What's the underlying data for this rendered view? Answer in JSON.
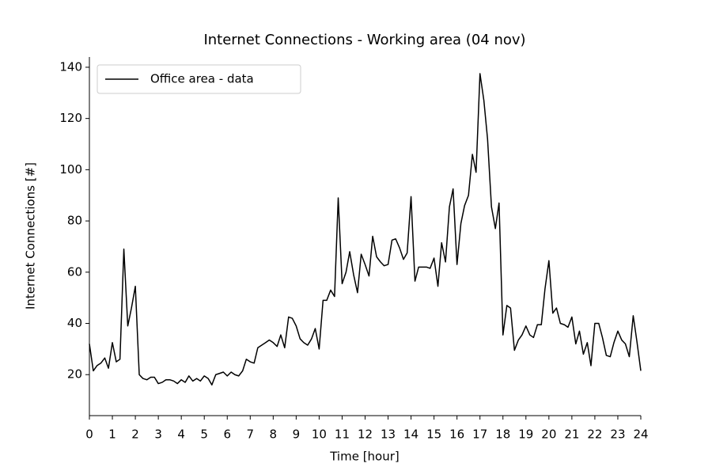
{
  "chart_data": {
    "type": "line",
    "title": "Internet Connections - Working area (04 nov)",
    "x_label": "Time [hour]",
    "y_label": "Internet Connections [#]",
    "legend": "upper left",
    "xlim": [
      0,
      24
    ],
    "ylim": [
      4,
      144
    ],
    "xticks": [
      0,
      1,
      2,
      3,
      4,
      5,
      6,
      7,
      8,
      9,
      10,
      11,
      12,
      13,
      14,
      15,
      16,
      17,
      18,
      19,
      20,
      21,
      22,
      23,
      24
    ],
    "yticks": [
      20,
      40,
      60,
      80,
      100,
      120,
      140
    ],
    "x": [
      0,
      0.17,
      0.33,
      0.5,
      0.67,
      0.83,
      1.0,
      1.17,
      1.33,
      1.5,
      1.67,
      1.83,
      2.0,
      2.17,
      2.33,
      2.5,
      2.67,
      2.83,
      3.0,
      3.17,
      3.33,
      3.5,
      3.67,
      3.83,
      4.0,
      4.17,
      4.33,
      4.5,
      4.67,
      4.83,
      5.0,
      5.17,
      5.33,
      5.5,
      5.67,
      5.83,
      6.0,
      6.17,
      6.33,
      6.5,
      6.67,
      6.83,
      7.0,
      7.17,
      7.33,
      7.5,
      7.67,
      7.83,
      8.0,
      8.17,
      8.33,
      8.5,
      8.67,
      8.83,
      9.0,
      9.17,
      9.33,
      9.5,
      9.67,
      9.83,
      10.0,
      10.17,
      10.33,
      10.5,
      10.67,
      10.83,
      11.0,
      11.17,
      11.33,
      11.5,
      11.67,
      11.83,
      12.0,
      12.17,
      12.33,
      12.5,
      12.67,
      12.83,
      13.0,
      13.17,
      13.33,
      13.5,
      13.67,
      13.83,
      14.0,
      14.17,
      14.33,
      14.5,
      14.67,
      14.83,
      15.0,
      15.17,
      15.33,
      15.5,
      15.67,
      15.83,
      16.0,
      16.17,
      16.33,
      16.5,
      16.67,
      16.83,
      17.0,
      17.17,
      17.33,
      17.5,
      17.67,
      17.83,
      18.0,
      18.17,
      18.33,
      18.5,
      18.67,
      18.83,
      19.0,
      19.17,
      19.33,
      19.5,
      19.67,
      19.83,
      20.0,
      20.17,
      20.33,
      20.5,
      20.67,
      20.83,
      21.0,
      21.17,
      21.33,
      21.5,
      21.67,
      21.83,
      22.0,
      22.17,
      22.33,
      22.5,
      22.67,
      22.83,
      23.0,
      23.17,
      23.33,
      23.5,
      23.67,
      23.83,
      24.0
    ],
    "series": [
      {
        "name": "Office area - data",
        "color": "#000000",
        "values": [
          32,
          21.5,
          23.5,
          24.5,
          26.5,
          22.5,
          32.5,
          25,
          26,
          69,
          39,
          46,
          54.5,
          20,
          18.5,
          18,
          19,
          19,
          16.5,
          17,
          18,
          18,
          17.5,
          16.5,
          18,
          17,
          19.5,
          17.5,
          18.5,
          17.5,
          19.5,
          18.5,
          16,
          20,
          20.5,
          21,
          19.5,
          21,
          20,
          19.5,
          21.5,
          26,
          25,
          24.5,
          30.5,
          31.5,
          32.5,
          33.5,
          32.5,
          31,
          35.5,
          30.5,
          42.5,
          42,
          39,
          34,
          32.5,
          31.5,
          34,
          38,
          30,
          49,
          49,
          53,
          50.5,
          89,
          55.5,
          60,
          68,
          59,
          52,
          67,
          63,
          58.5,
          74,
          66,
          64,
          62.5,
          63,
          72.5,
          73,
          69.5,
          65,
          67.5,
          89.5,
          56.5,
          62,
          62,
          62,
          61.5,
          65.5,
          54.5,
          71.5,
          64,
          85.5,
          92.5,
          63,
          79,
          86,
          90,
          106,
          99,
          137.5,
          127,
          112,
          85.5,
          77,
          87,
          35.5,
          47,
          46,
          29.5,
          33.5,
          35.5,
          39,
          35.5,
          34.5,
          39.5,
          39.5,
          53.5,
          64.5,
          44,
          46,
          40,
          39.5,
          38.5,
          42.5,
          32,
          37,
          28,
          32.5,
          23.5,
          40,
          40,
          34.5,
          27.5,
          27,
          32.5,
          37,
          33.5,
          32,
          27,
          43,
          33,
          21.5
        ]
      }
    ]
  }
}
